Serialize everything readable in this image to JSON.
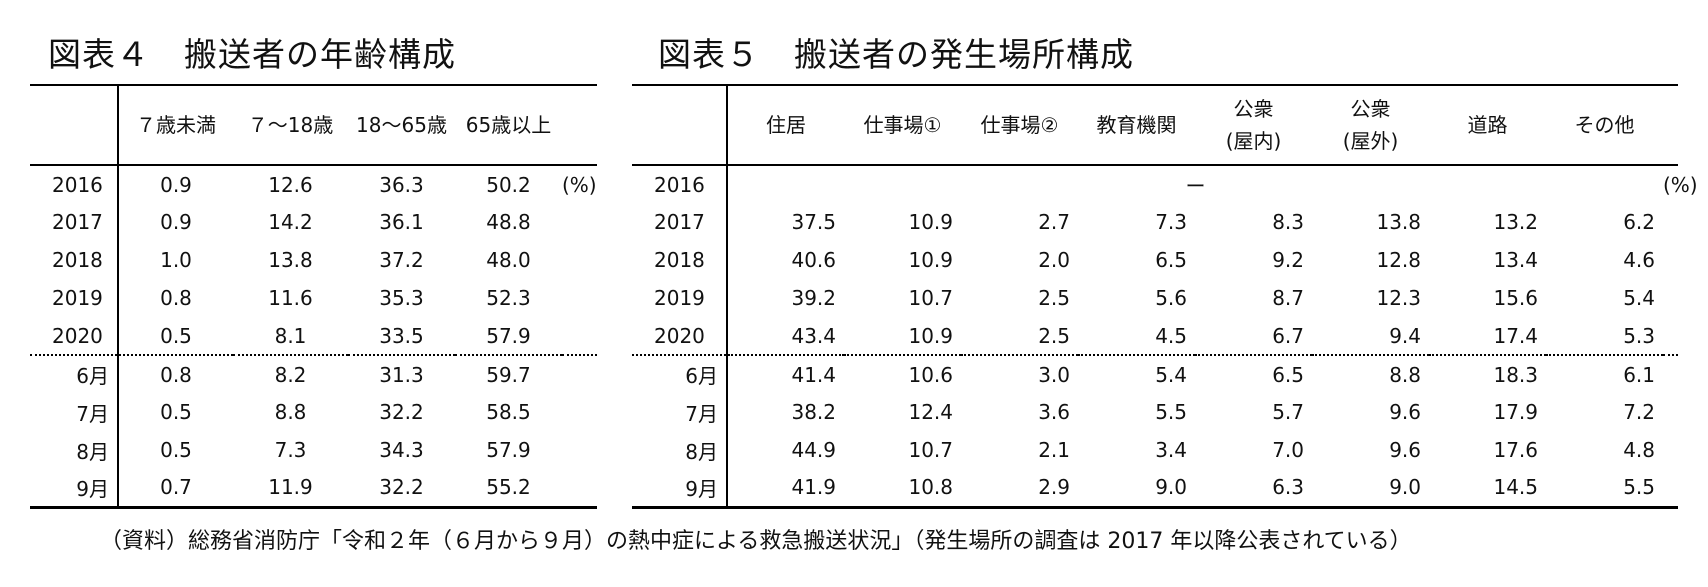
{
  "table4": {
    "title": "図表４　搬送者の年齢構成",
    "unit": "(%)",
    "headers": [
      "７歳未満",
      "７～18歳",
      "18～65歳",
      "65歳以上"
    ],
    "rows": [
      {
        "label": "2016",
        "values": [
          "0.9",
          "12.6",
          "36.3",
          "50.2"
        ]
      },
      {
        "label": "2017",
        "values": [
          "0.9",
          "14.2",
          "36.1",
          "48.8"
        ]
      },
      {
        "label": "2018",
        "values": [
          "1.0",
          "13.8",
          "37.2",
          "48.0"
        ]
      },
      {
        "label": "2019",
        "values": [
          "0.8",
          "11.6",
          "35.3",
          "52.3"
        ]
      },
      {
        "label": "2020",
        "values": [
          "0.5",
          "8.1",
          "33.5",
          "57.9"
        ]
      },
      {
        "label": "6月",
        "values": [
          "0.8",
          "8.2",
          "31.3",
          "59.7"
        ]
      },
      {
        "label": "7月",
        "values": [
          "0.5",
          "8.8",
          "32.2",
          "58.5"
        ]
      },
      {
        "label": "8月",
        "values": [
          "0.5",
          "7.3",
          "34.3",
          "57.9"
        ]
      },
      {
        "label": "9月",
        "values": [
          "0.7",
          "11.9",
          "32.2",
          "55.2"
        ]
      }
    ]
  },
  "table5": {
    "title": "図表５　搬送者の発生場所構成",
    "unit": "(%)",
    "headers": [
      {
        "line1": "住居",
        "line2": ""
      },
      {
        "line1": "仕事場①",
        "line2": ""
      },
      {
        "line1": "仕事場②",
        "line2": ""
      },
      {
        "line1": "教育機関",
        "line2": ""
      },
      {
        "line1": "公衆",
        "line2": "(屋内)"
      },
      {
        "line1": "公衆",
        "line2": "(屋外)"
      },
      {
        "line1": "道路",
        "line2": ""
      },
      {
        "line1": "その他",
        "line2": ""
      }
    ],
    "row_2016": {
      "label": "2016",
      "dash": "ー"
    },
    "rows": [
      {
        "label": "2017",
        "values": [
          "37.5",
          "10.9",
          "2.7",
          "7.3",
          "8.3",
          "13.8",
          "13.2",
          "6.2"
        ]
      },
      {
        "label": "2018",
        "values": [
          "40.6",
          "10.9",
          "2.0",
          "6.5",
          "9.2",
          "12.8",
          "13.4",
          "4.6"
        ]
      },
      {
        "label": "2019",
        "values": [
          "39.2",
          "10.7",
          "2.5",
          "5.6",
          "8.7",
          "12.3",
          "15.6",
          "5.4"
        ]
      },
      {
        "label": "2020",
        "values": [
          "43.4",
          "10.9",
          "2.5",
          "4.5",
          "6.7",
          "9.4",
          "17.4",
          "5.3"
        ]
      },
      {
        "label": "6月",
        "values": [
          "41.4",
          "10.6",
          "3.0",
          "5.4",
          "6.5",
          "8.8",
          "18.3",
          "6.1"
        ]
      },
      {
        "label": "7月",
        "values": [
          "38.2",
          "12.4",
          "3.6",
          "5.5",
          "5.7",
          "9.6",
          "17.9",
          "7.2"
        ]
      },
      {
        "label": "8月",
        "values": [
          "44.9",
          "10.7",
          "2.1",
          "3.4",
          "7.0",
          "9.6",
          "17.6",
          "4.8"
        ]
      },
      {
        "label": "9月",
        "values": [
          "41.9",
          "10.8",
          "2.9",
          "9.0",
          "6.3",
          "9.0",
          "14.5",
          "5.5"
        ]
      }
    ]
  },
  "source": "（資料）総務省消防庁「令和２年（６月から９月）の熱中症による救急搬送状況」（発生場所の調査は 2017 年以降公表されている）"
}
